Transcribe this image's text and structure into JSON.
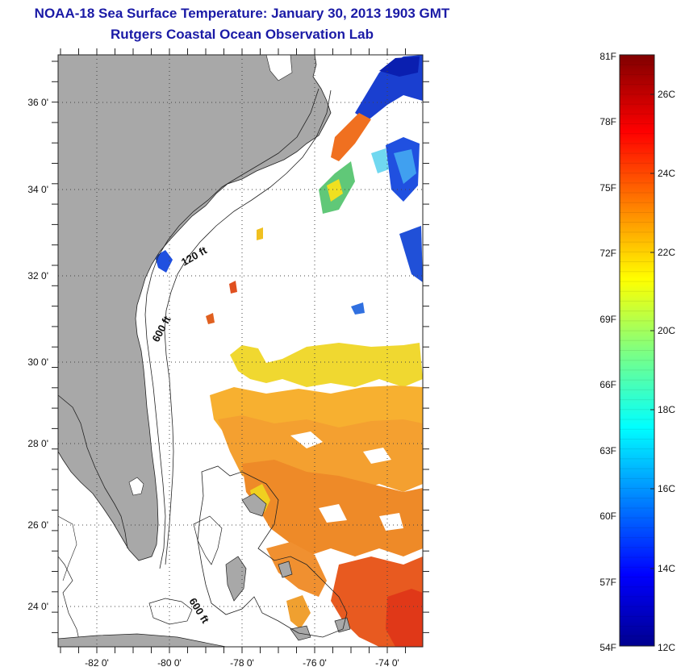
{
  "header": {
    "title": "NOAA-18 Sea Surface Temperature:  January 30, 2013 1903 GMT",
    "subtitle": "Rutgers Coastal Ocean Observation Lab"
  },
  "map": {
    "lon_range": [
      -83,
      -73
    ],
    "lat_range": [
      23,
      37
    ],
    "lat_labels": [
      "24 0'",
      "26 0'",
      "28 0'",
      "30 0'",
      "32 0'",
      "34 0'",
      "36 0'"
    ],
    "lon_labels": [
      "-82 0'",
      "-80 0'",
      "-78 0'",
      "-76 0'",
      "-74 0'"
    ],
    "contour_labels": [
      "120 ft",
      "600 ft",
      "600 ft"
    ],
    "colors": {
      "land": "#a8a8a8",
      "water": "#ffffff",
      "grid": "#444444"
    }
  },
  "colorbar": {
    "f_labels": [
      "81F",
      "78F",
      "75F",
      "72F",
      "69F",
      "66F",
      "63F",
      "60F",
      "57F",
      "54F"
    ],
    "c_labels": [
      "26C",
      "24C",
      "22C",
      "20C",
      "18C",
      "16C",
      "14C",
      "12C"
    ],
    "f_range": [
      54,
      81
    ],
    "c_range": [
      12,
      27
    ]
  }
}
